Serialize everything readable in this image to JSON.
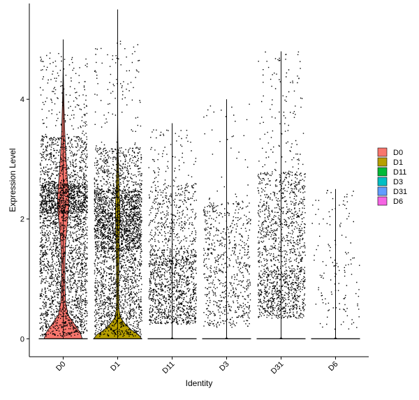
{
  "chart_data": {
    "type": "violin",
    "xlabel": "Identity",
    "ylabel": "Expression Level",
    "ylim": [
      -0.3,
      5.6
    ],
    "yticks": [
      0,
      2,
      4
    ],
    "categories": [
      "D0",
      "D1",
      "D11",
      "D3",
      "D31",
      "D6"
    ],
    "groups": [
      {
        "name": "D0",
        "color": "#F8766D",
        "max": 5.0,
        "density": [
          [
            0.0,
            0.78
          ],
          [
            0.1,
            0.7
          ],
          [
            0.25,
            0.45
          ],
          [
            0.4,
            0.2
          ],
          [
            0.6,
            0.1
          ],
          [
            0.8,
            0.08
          ],
          [
            1.0,
            0.07
          ],
          [
            1.2,
            0.07
          ],
          [
            1.4,
            0.08
          ],
          [
            1.6,
            0.1
          ],
          [
            1.8,
            0.14
          ],
          [
            2.0,
            0.19
          ],
          [
            2.2,
            0.23
          ],
          [
            2.4,
            0.23
          ],
          [
            2.6,
            0.19
          ],
          [
            2.8,
            0.15
          ],
          [
            3.0,
            0.12
          ],
          [
            3.2,
            0.09
          ],
          [
            3.5,
            0.06
          ],
          [
            3.8,
            0.04
          ],
          [
            4.1,
            0.02
          ],
          [
            4.5,
            0.005
          ],
          [
            5.0,
            0.0
          ]
        ],
        "scatter_bands": [
          [
            0.05,
            2.1,
            0.5
          ],
          [
            2.1,
            2.6,
            0.3
          ],
          [
            2.6,
            3.4,
            0.15
          ],
          [
            3.4,
            4.8,
            0.05
          ]
        ]
      },
      {
        "name": "D1",
        "color": "#B79F00",
        "max": 5.5,
        "density": [
          [
            0.0,
            0.98
          ],
          [
            0.07,
            0.85
          ],
          [
            0.15,
            0.55
          ],
          [
            0.25,
            0.3
          ],
          [
            0.35,
            0.12
          ],
          [
            0.5,
            0.05
          ],
          [
            0.8,
            0.04
          ],
          [
            1.2,
            0.05
          ],
          [
            1.6,
            0.06
          ],
          [
            1.9,
            0.08
          ],
          [
            2.1,
            0.09
          ],
          [
            2.3,
            0.08
          ],
          [
            2.5,
            0.06
          ],
          [
            2.8,
            0.04
          ],
          [
            3.0,
            0.025
          ],
          [
            3.3,
            0.01
          ],
          [
            3.7,
            0.004
          ],
          [
            4.5,
            0.002
          ],
          [
            5.5,
            0.0
          ]
        ],
        "scatter_bands": [
          [
            0.05,
            1.5,
            0.35
          ],
          [
            1.5,
            2.5,
            0.5
          ],
          [
            2.5,
            3.2,
            0.12
          ],
          [
            3.2,
            5.0,
            0.03
          ]
        ]
      },
      {
        "name": "D11",
        "color": "#00BA38",
        "max": 3.6,
        "density": [
          [
            0.0,
            0.06
          ],
          [
            0.02,
            0.0
          ],
          [
            3.6,
            0.0
          ]
        ],
        "scatter_bands": [
          [
            0.25,
            1.5,
            0.7
          ],
          [
            1.5,
            2.6,
            0.25
          ],
          [
            2.6,
            3.5,
            0.05
          ]
        ]
      },
      {
        "name": "D3",
        "color": "#00BFC4",
        "max": 4.0,
        "density": [
          [
            0.0,
            0.06
          ],
          [
            0.02,
            0.0
          ],
          [
            4.0,
            0.0
          ]
        ],
        "scatter_bands": [
          [
            0.2,
            2.3,
            0.95
          ],
          [
            2.3,
            4.0,
            0.05
          ]
        ]
      },
      {
        "name": "D31",
        "color": "#619CFF",
        "max": 4.8,
        "density": [
          [
            0.0,
            0.06
          ],
          [
            0.02,
            0.0
          ],
          [
            4.8,
            0.0
          ]
        ],
        "scatter_bands": [
          [
            0.35,
            1.1,
            0.4
          ],
          [
            1.1,
            2.8,
            0.52
          ],
          [
            2.8,
            4.8,
            0.08
          ]
        ]
      },
      {
        "name": "D6",
        "color": "#F564E3",
        "max": 2.5,
        "density": [
          [
            0.0,
            0.06
          ],
          [
            0.02,
            0.0
          ],
          [
            2.5,
            0.0
          ]
        ],
        "scatter_bands": [
          [
            0.15,
            2.5,
            1.0
          ]
        ]
      }
    ],
    "legend": {
      "position": "right",
      "entries": [
        "D0",
        "D1",
        "D11",
        "D3",
        "D31",
        "D6"
      ]
    },
    "grid": false
  }
}
